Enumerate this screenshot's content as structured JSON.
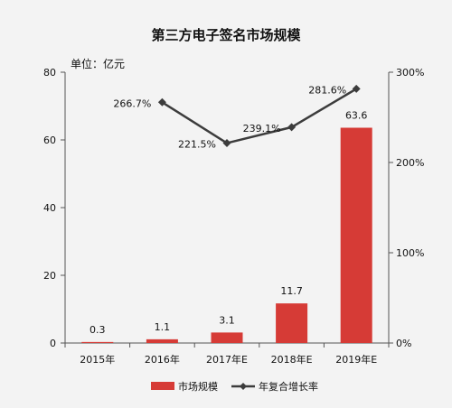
{
  "chart_data": {
    "type": "bar",
    "title": "第三方电子签名市场规模",
    "unit_label": "单位：亿元",
    "categories": [
      "2015年",
      "2016年",
      "2017年E",
      "2018年E",
      "2019年E"
    ],
    "series": [
      {
        "name": "市场规模",
        "type": "bar",
        "axis": "left",
        "color": "#d63b36",
        "values": [
          0.3,
          1.1,
          3.1,
          11.7,
          63.6
        ],
        "labels": [
          "0.3",
          "1.1",
          "3.1",
          "11.7",
          "63.6"
        ]
      },
      {
        "name": "年复合增长率",
        "type": "line",
        "axis": "right",
        "color": "#3c3c3c",
        "values": [
          null,
          266.7,
          221.5,
          239.1,
          281.6
        ],
        "labels": [
          "",
          "266.7%",
          "221.5%",
          "239.1%",
          "281.6%"
        ]
      }
    ],
    "y_left": {
      "min": 0,
      "max": 80,
      "ticks": [
        0,
        20,
        40,
        60,
        80
      ],
      "tick_labels": [
        "0",
        "20",
        "40",
        "60",
        "80"
      ]
    },
    "y_right": {
      "min": 0,
      "max": 300,
      "ticks": [
        0,
        100,
        200,
        300
      ],
      "tick_labels": [
        "0%",
        "100%",
        "200%",
        "300%"
      ]
    },
    "grid": false,
    "legend": "bottom"
  }
}
